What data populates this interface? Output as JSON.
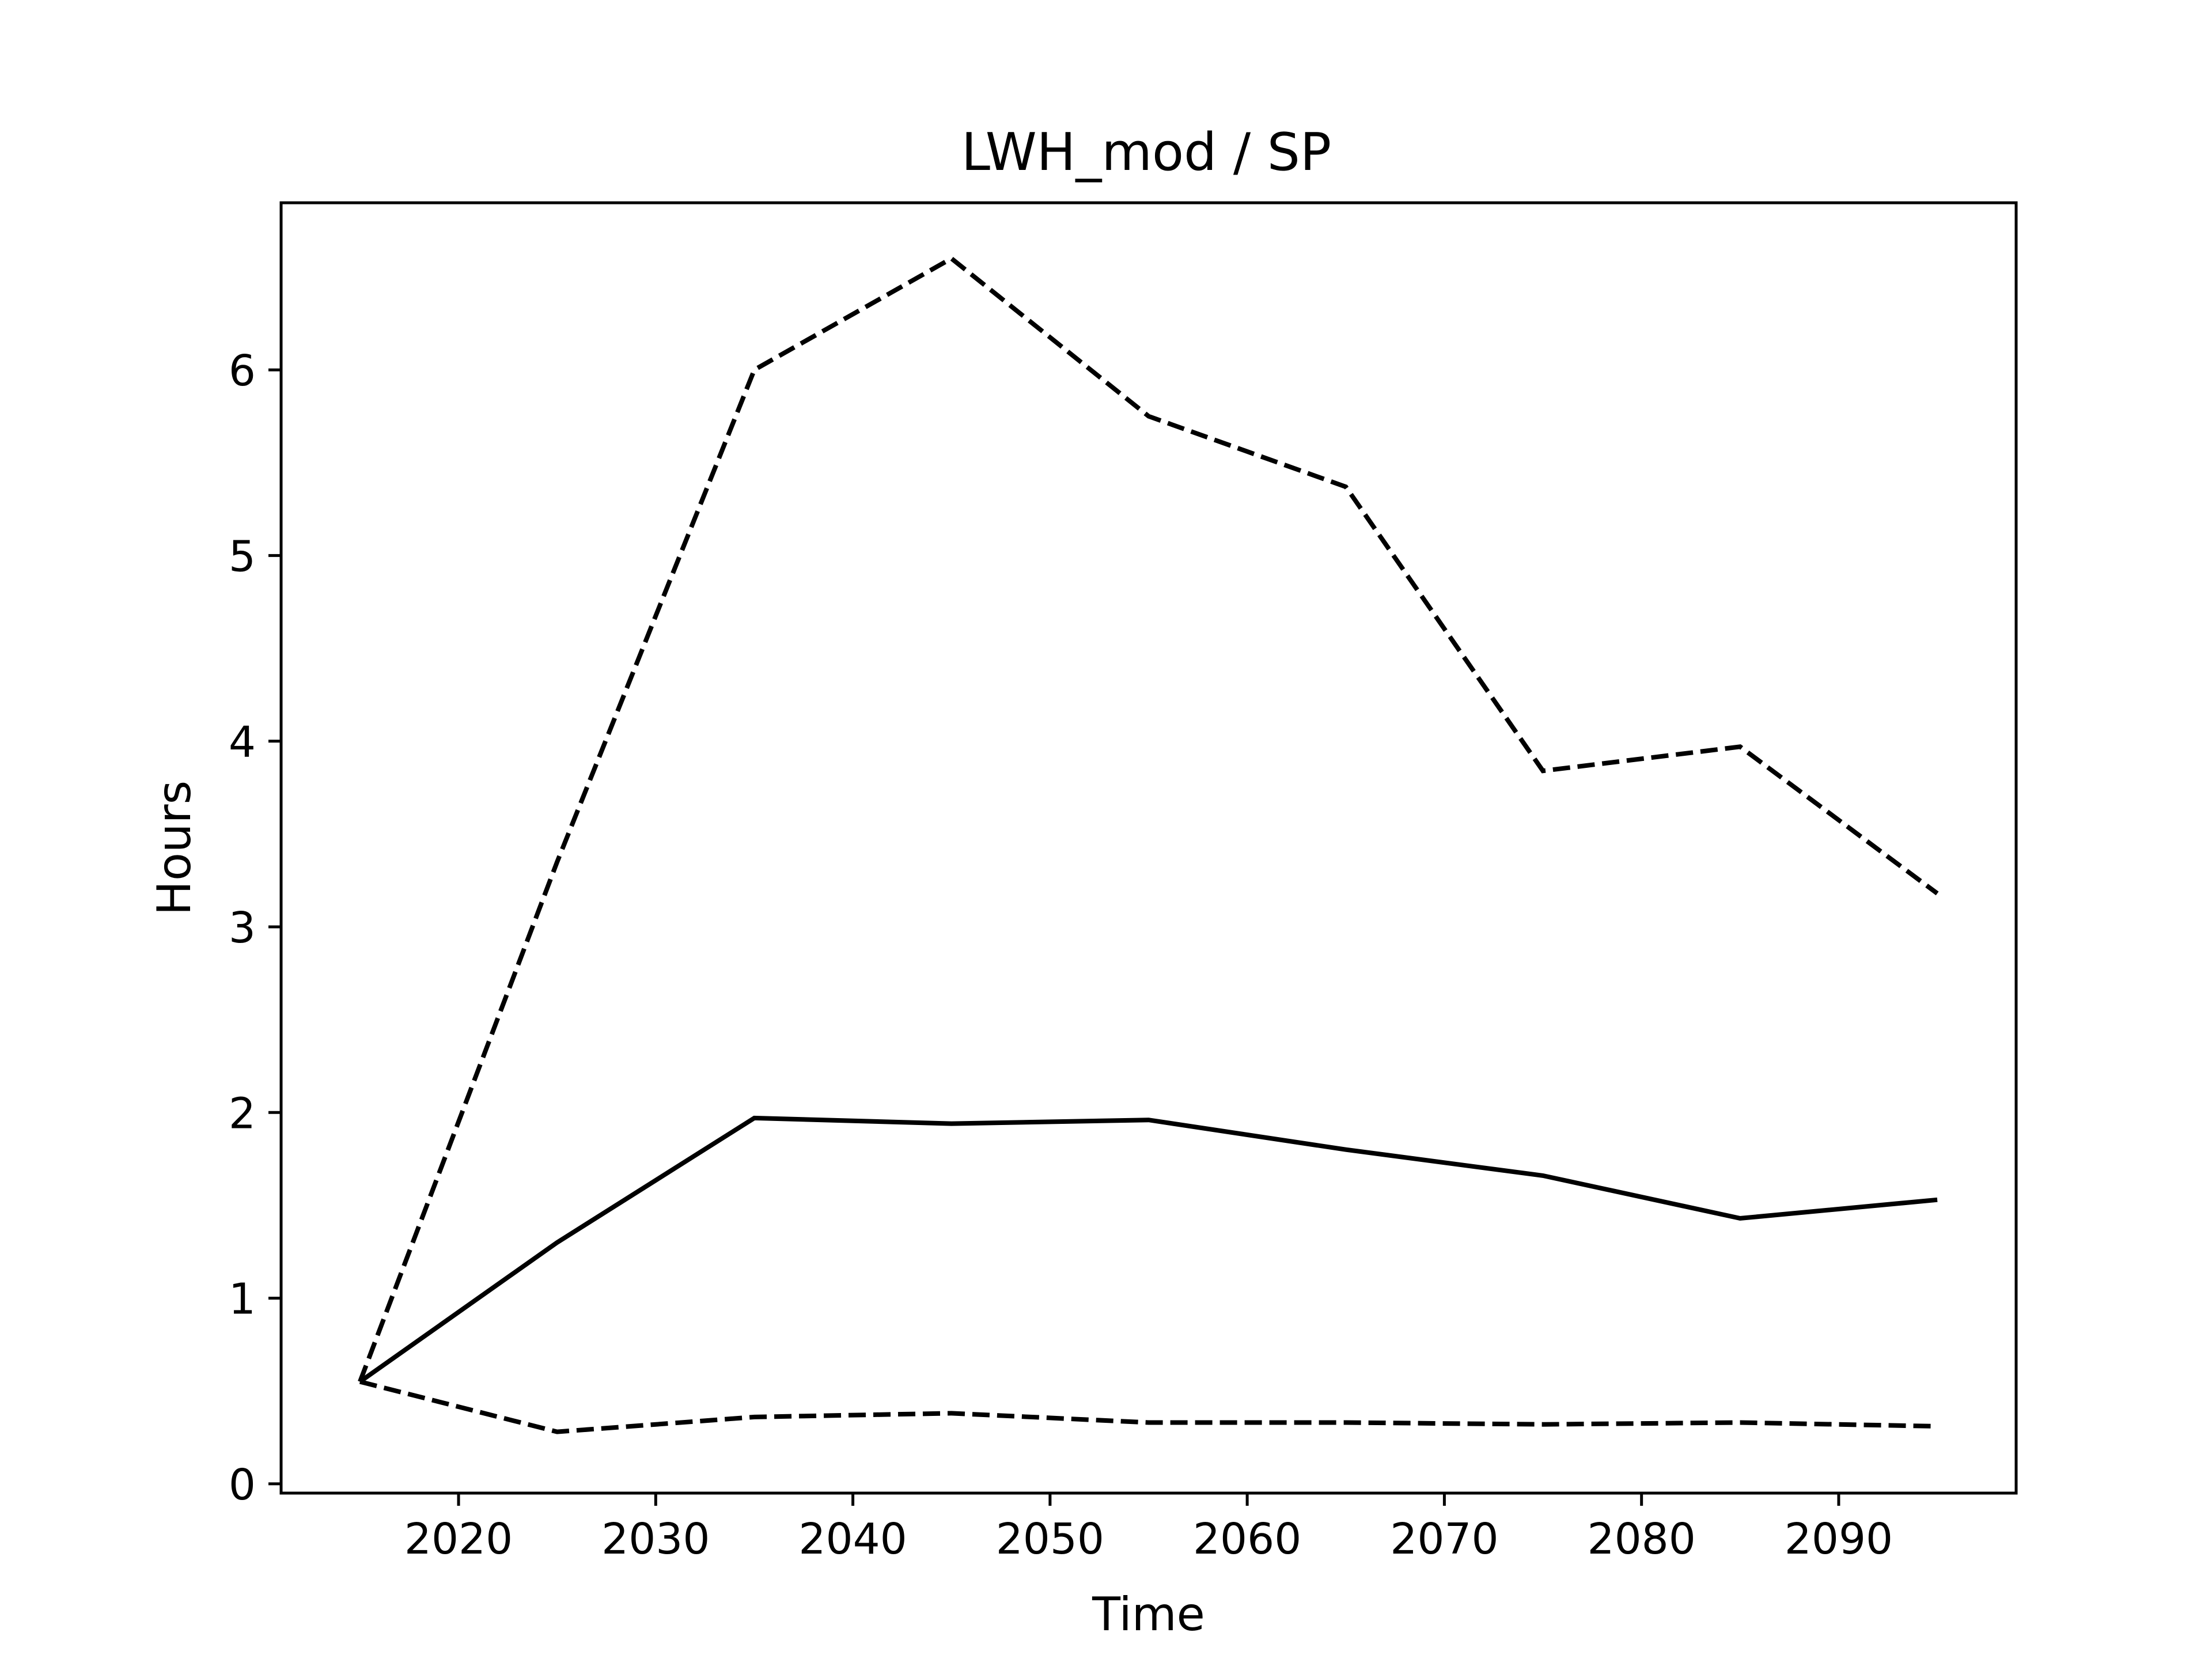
{
  "chart_data": {
    "type": "line",
    "title": "LWH_mod / SP",
    "xlabel": "Time",
    "ylabel": "Hours",
    "xlim": [
      2011,
      2099
    ],
    "ylim": [
      -0.05,
      6.9
    ],
    "grid": false,
    "xticks": [
      2020,
      2030,
      2040,
      2050,
      2060,
      2070,
      2080,
      2090
    ],
    "yticks": [
      0,
      1,
      2,
      3,
      4,
      5,
      6
    ],
    "x": [
      2015,
      2025,
      2035,
      2045,
      2055,
      2065,
      2075,
      2085,
      2095
    ],
    "series": [
      {
        "style": "dashed",
        "color": "#000000",
        "values": [
          0.55,
          3.35,
          6.0,
          6.6,
          5.75,
          5.37,
          3.84,
          3.97,
          3.18
        ]
      },
      {
        "style": "solid",
        "color": "#000000",
        "values": [
          0.55,
          1.3,
          1.97,
          1.94,
          1.96,
          1.8,
          1.66,
          1.43,
          1.53
        ]
      },
      {
        "style": "dashed",
        "color": "#000000",
        "values": [
          0.55,
          0.28,
          0.36,
          0.38,
          0.33,
          0.33,
          0.32,
          0.33,
          0.31
        ]
      }
    ]
  }
}
